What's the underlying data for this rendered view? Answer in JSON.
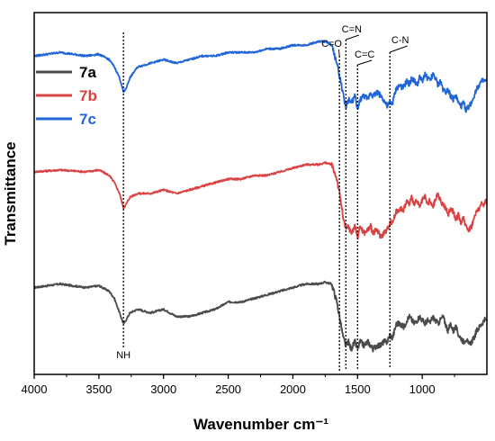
{
  "chart_data": {
    "type": "line",
    "xlabel": "Wavenumber cm⁻¹",
    "ylabel": "Transmittance",
    "xlim": [
      4000,
      500
    ],
    "x_ticks": [
      4000,
      3500,
      3000,
      2500,
      2000,
      1500,
      1000
    ],
    "y_ticks_shown": false,
    "grid": false,
    "legend_position": "top-left",
    "series": [
      {
        "name": "7a",
        "color": "#4a4a4a",
        "points": [
          [
            4000,
            84
          ],
          [
            3800,
            85
          ],
          [
            3600,
            84
          ],
          [
            3500,
            84.5
          ],
          [
            3420,
            83
          ],
          [
            3380,
            81
          ],
          [
            3340,
            77
          ],
          [
            3310,
            74
          ],
          [
            3290,
            75
          ],
          [
            3260,
            77
          ],
          [
            3200,
            78
          ],
          [
            3100,
            77
          ],
          [
            3000,
            78
          ],
          [
            2900,
            76
          ],
          [
            2800,
            76
          ],
          [
            2700,
            77
          ],
          [
            2600,
            78
          ],
          [
            2500,
            80
          ],
          [
            2400,
            80
          ],
          [
            2300,
            81
          ],
          [
            2200,
            82
          ],
          [
            2100,
            83
          ],
          [
            2000,
            84
          ],
          [
            1900,
            85
          ],
          [
            1800,
            85
          ],
          [
            1750,
            85.5
          ],
          [
            1700,
            85
          ],
          [
            1660,
            80
          ],
          [
            1630,
            74
          ],
          [
            1610,
            70
          ],
          [
            1590,
            68
          ],
          [
            1570,
            69
          ],
          [
            1550,
            67
          ],
          [
            1520,
            69
          ],
          [
            1500,
            67
          ],
          [
            1480,
            69
          ],
          [
            1450,
            68
          ],
          [
            1420,
            69
          ],
          [
            1400,
            68
          ],
          [
            1380,
            67
          ],
          [
            1350,
            68
          ],
          [
            1320,
            68
          ],
          [
            1300,
            69
          ],
          [
            1270,
            69
          ],
          [
            1250,
            71
          ],
          [
            1230,
            70
          ],
          [
            1200,
            74
          ],
          [
            1170,
            74
          ],
          [
            1140,
            73
          ],
          [
            1120,
            75
          ],
          [
            1100,
            76
          ],
          [
            1080,
            75
          ],
          [
            1060,
            74
          ],
          [
            1040,
            75
          ],
          [
            1020,
            76
          ],
          [
            1000,
            75
          ],
          [
            980,
            74
          ],
          [
            960,
            75
          ],
          [
            940,
            74
          ],
          [
            920,
            76
          ],
          [
            900,
            75
          ],
          [
            880,
            74
          ],
          [
            860,
            75
          ],
          [
            840,
            76
          ],
          [
            820,
            74
          ],
          [
            800,
            72
          ],
          [
            780,
            74
          ],
          [
            760,
            72
          ],
          [
            740,
            73
          ],
          [
            720,
            71
          ],
          [
            700,
            70
          ],
          [
            680,
            69
          ],
          [
            660,
            70
          ],
          [
            640,
            68
          ],
          [
            620,
            69
          ],
          [
            600,
            70
          ],
          [
            580,
            72
          ],
          [
            560,
            73
          ],
          [
            540,
            74
          ],
          [
            520,
            75
          ],
          [
            510,
            75
          ]
        ]
      },
      {
        "name": "7b",
        "color": "#d94343",
        "points": [
          [
            4000,
            116
          ],
          [
            3800,
            116.5
          ],
          [
            3600,
            116
          ],
          [
            3500,
            116.5
          ],
          [
            3420,
            115
          ],
          [
            3380,
            113
          ],
          [
            3340,
            110
          ],
          [
            3310,
            106
          ],
          [
            3290,
            107
          ],
          [
            3260,
            109
          ],
          [
            3200,
            110
          ],
          [
            3100,
            110
          ],
          [
            3000,
            111
          ],
          [
            2900,
            110
          ],
          [
            2800,
            111
          ],
          [
            2700,
            112
          ],
          [
            2600,
            113
          ],
          [
            2500,
            114
          ],
          [
            2400,
            114
          ],
          [
            2300,
            115
          ],
          [
            2200,
            115
          ],
          [
            2100,
            116
          ],
          [
            2000,
            117
          ],
          [
            1900,
            118
          ],
          [
            1800,
            118
          ],
          [
            1750,
            118.5
          ],
          [
            1700,
            118
          ],
          [
            1660,
            114
          ],
          [
            1630,
            108
          ],
          [
            1610,
            103
          ],
          [
            1590,
            100
          ],
          [
            1570,
            101
          ],
          [
            1550,
            99
          ],
          [
            1520,
            101
          ],
          [
            1500,
            98
          ],
          [
            1480,
            101
          ],
          [
            1450,
            99
          ],
          [
            1420,
            100
          ],
          [
            1400,
            101
          ],
          [
            1380,
            99
          ],
          [
            1350,
            100
          ],
          [
            1320,
            98
          ],
          [
            1300,
            99
          ],
          [
            1270,
            100
          ],
          [
            1250,
            102
          ],
          [
            1230,
            102
          ],
          [
            1200,
            105
          ],
          [
            1170,
            106
          ],
          [
            1150,
            105
          ],
          [
            1120,
            108
          ],
          [
            1100,
            107
          ],
          [
            1080,
            109
          ],
          [
            1060,
            107
          ],
          [
            1040,
            108
          ],
          [
            1020,
            106
          ],
          [
            1000,
            108
          ],
          [
            980,
            109
          ],
          [
            960,
            107
          ],
          [
            940,
            108
          ],
          [
            920,
            106
          ],
          [
            900,
            108
          ],
          [
            880,
            110
          ],
          [
            860,
            108
          ],
          [
            840,
            107
          ],
          [
            820,
            106
          ],
          [
            800,
            104
          ],
          [
            780,
            106
          ],
          [
            760,
            105
          ],
          [
            740,
            103
          ],
          [
            720,
            104
          ],
          [
            700,
            102
          ],
          [
            680,
            103
          ],
          [
            660,
            101
          ],
          [
            640,
            100
          ],
          [
            620,
            101
          ],
          [
            600,
            103
          ],
          [
            580,
            105
          ],
          [
            560,
            106
          ],
          [
            540,
            107
          ],
          [
            520,
            107
          ],
          [
            510,
            108
          ]
        ]
      },
      {
        "name": "7c",
        "color": "#2166d6",
        "points": [
          [
            4000,
            148
          ],
          [
            3800,
            149
          ],
          [
            3600,
            148
          ],
          [
            3500,
            148.5
          ],
          [
            3420,
            147
          ],
          [
            3380,
            145
          ],
          [
            3340,
            142
          ],
          [
            3310,
            138
          ],
          [
            3290,
            139
          ],
          [
            3260,
            142
          ],
          [
            3200,
            145
          ],
          [
            3100,
            146
          ],
          [
            3000,
            147
          ],
          [
            2900,
            146
          ],
          [
            2800,
            147
          ],
          [
            2700,
            148
          ],
          [
            2600,
            148
          ],
          [
            2500,
            149
          ],
          [
            2400,
            149
          ],
          [
            2300,
            149
          ],
          [
            2200,
            150
          ],
          [
            2100,
            150
          ],
          [
            2000,
            151
          ],
          [
            1900,
            151
          ],
          [
            1800,
            152
          ],
          [
            1750,
            152
          ],
          [
            1700,
            151
          ],
          [
            1660,
            146
          ],
          [
            1630,
            141
          ],
          [
            1610,
            137
          ],
          [
            1590,
            134
          ],
          [
            1570,
            136
          ],
          [
            1550,
            135
          ],
          [
            1520,
            137
          ],
          [
            1500,
            133
          ],
          [
            1480,
            136
          ],
          [
            1450,
            137
          ],
          [
            1420,
            136
          ],
          [
            1400,
            138
          ],
          [
            1380,
            137
          ],
          [
            1350,
            138
          ],
          [
            1320,
            137
          ],
          [
            1300,
            136
          ],
          [
            1270,
            134
          ],
          [
            1250,
            135
          ],
          [
            1230,
            135
          ],
          [
            1200,
            139
          ],
          [
            1170,
            140
          ],
          [
            1150,
            139
          ],
          [
            1120,
            141
          ],
          [
            1100,
            140
          ],
          [
            1080,
            142
          ],
          [
            1060,
            141
          ],
          [
            1040,
            140
          ],
          [
            1020,
            142
          ],
          [
            1000,
            141
          ],
          [
            980,
            143
          ],
          [
            960,
            142
          ],
          [
            940,
            141
          ],
          [
            920,
            143
          ],
          [
            900,
            142
          ],
          [
            880,
            140
          ],
          [
            860,
            141
          ],
          [
            840,
            139
          ],
          [
            820,
            138
          ],
          [
            800,
            139
          ],
          [
            780,
            137
          ],
          [
            760,
            136
          ],
          [
            740,
            137
          ],
          [
            720,
            135
          ],
          [
            700,
            134
          ],
          [
            680,
            135
          ],
          [
            660,
            133
          ],
          [
            640,
            134
          ],
          [
            620,
            135
          ],
          [
            600,
            137
          ],
          [
            580,
            139
          ],
          [
            560,
            140
          ],
          [
            540,
            141
          ],
          [
            520,
            141
          ],
          [
            510,
            141
          ]
        ]
      }
    ],
    "annotations": [
      {
        "label": "NH",
        "x": 3310
      },
      {
        "label": "C=O",
        "x": 1640
      },
      {
        "label": "C=N",
        "x": 1590
      },
      {
        "label": "C=C",
        "x": 1500
      },
      {
        "label": "C-N",
        "x": 1250
      }
    ]
  }
}
